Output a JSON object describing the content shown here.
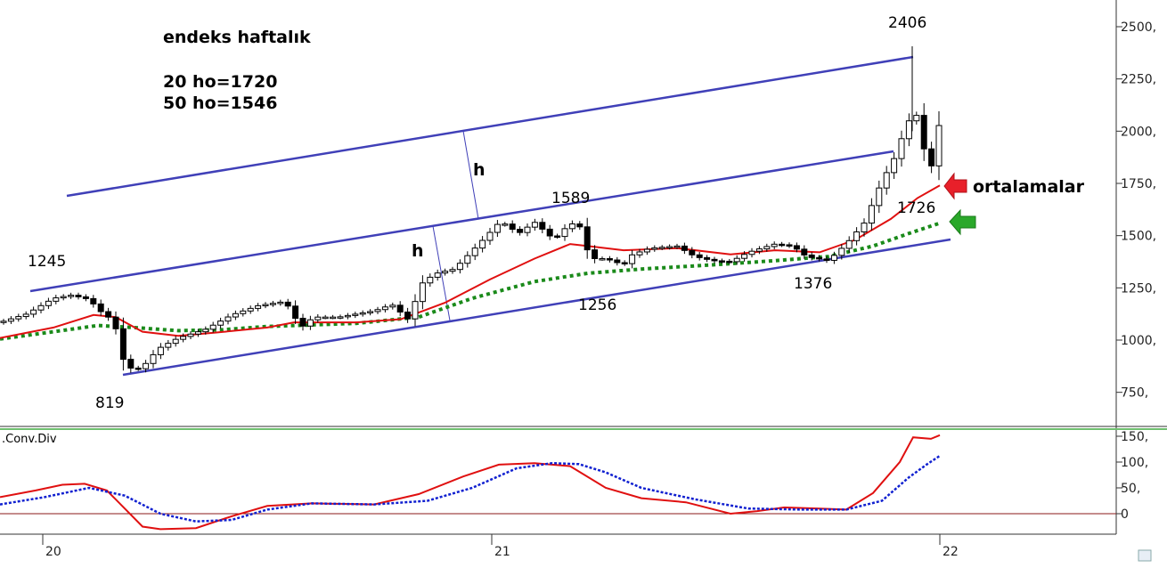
{
  "chart_data": [
    {
      "type": "candlestick",
      "title": "",
      "ylim": [
        580,
        2600
      ],
      "y_ticks": [
        "2500,",
        "2250,",
        "2000,",
        "1750,",
        "1500,",
        "1250,",
        "1000,",
        "750,"
      ],
      "y_tick_values": [
        2500,
        2250,
        2000,
        1750,
        1500,
        1250,
        1000,
        750
      ],
      "x_ticks": [
        "20",
        "21",
        "22"
      ],
      "annotations": {
        "title": "endeks haftalık",
        "ma20": "20 ho=1720",
        "ma50": "50 ho=1546",
        "ortalamalar": "ortalamalar",
        "h1": "h",
        "h2": "h",
        "p1245": "1245",
        "p819": "819",
        "p1589": "1589",
        "p1256": "1256",
        "p1376": "1376",
        "p2406": "2406",
        "p1726": "1726"
      },
      "key_points": [
        {
          "label": "1245",
          "value": 1245
        },
        {
          "label": "819",
          "value": 819
        },
        {
          "label": "1589",
          "value": 1589
        },
        {
          "label": "1256",
          "value": 1256
        },
        {
          "label": "1376",
          "value": 1376
        },
        {
          "label": "2406",
          "value": 2406
        },
        {
          "label": "1726",
          "value": 1726
        }
      ],
      "colors": {
        "channel": "#4040b8",
        "ma_short": "#e01010",
        "ma_long": "#1a8a1a",
        "arrow_red": "#e8202a",
        "arrow_green": "#2aa82a"
      }
    },
    {
      "type": "line",
      "name": ".Conv.Div",
      "ylim": [
        -40,
        160
      ],
      "y_ticks": [
        "150,",
        "100,",
        "50,",
        "0"
      ],
      "y_tick_values": [
        150,
        100,
        50,
        0
      ],
      "series": [
        {
          "name": "macd",
          "color": "#e01010"
        },
        {
          "name": "signal",
          "color": "#1020d0"
        }
      ]
    }
  ]
}
